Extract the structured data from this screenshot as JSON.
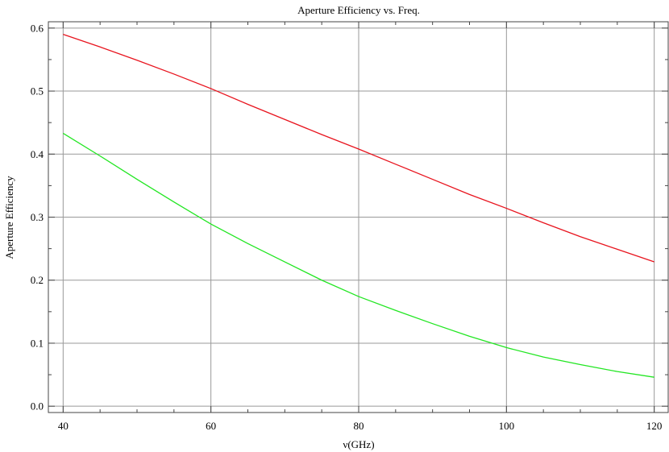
{
  "chart_data": {
    "type": "line",
    "title": "Aperture Efficiency vs. Freq.",
    "xlabel": "ν(GHz)",
    "ylabel": "Aperture Efficiency",
    "xlim": [
      38,
      122
    ],
    "ylim": [
      -0.01,
      0.61
    ],
    "xticks": [
      40,
      60,
      80,
      100,
      120
    ],
    "yticks": [
      0.0,
      0.1,
      0.2,
      0.3,
      0.4,
      0.5,
      0.6
    ],
    "xtick_labels": [
      "40",
      "60",
      "80",
      "100",
      "120"
    ],
    "ytick_labels": [
      "0.0",
      "0.1",
      "0.2",
      "0.3",
      "0.4",
      "0.5",
      "0.6"
    ],
    "grid": true,
    "series": [
      {
        "color": "#e8141e",
        "x": [
          40,
          45,
          50,
          55,
          60,
          65,
          70,
          75,
          80,
          85,
          90,
          95,
          100,
          105,
          110,
          115,
          120
        ],
        "y": [
          0.59,
          0.57,
          0.549,
          0.527,
          0.504,
          0.479,
          0.455,
          0.431,
          0.408,
          0.384,
          0.36,
          0.336,
          0.314,
          0.291,
          0.269,
          0.249,
          0.229
        ]
      },
      {
        "color": "#22e622",
        "x": [
          40,
          45,
          50,
          55,
          60,
          65,
          70,
          75,
          80,
          85,
          90,
          95,
          100,
          105,
          110,
          115,
          120
        ],
        "y": [
          0.433,
          0.397,
          0.36,
          0.324,
          0.289,
          0.258,
          0.229,
          0.2,
          0.174,
          0.152,
          0.131,
          0.111,
          0.093,
          0.078,
          0.066,
          0.055,
          0.046
        ]
      }
    ]
  }
}
